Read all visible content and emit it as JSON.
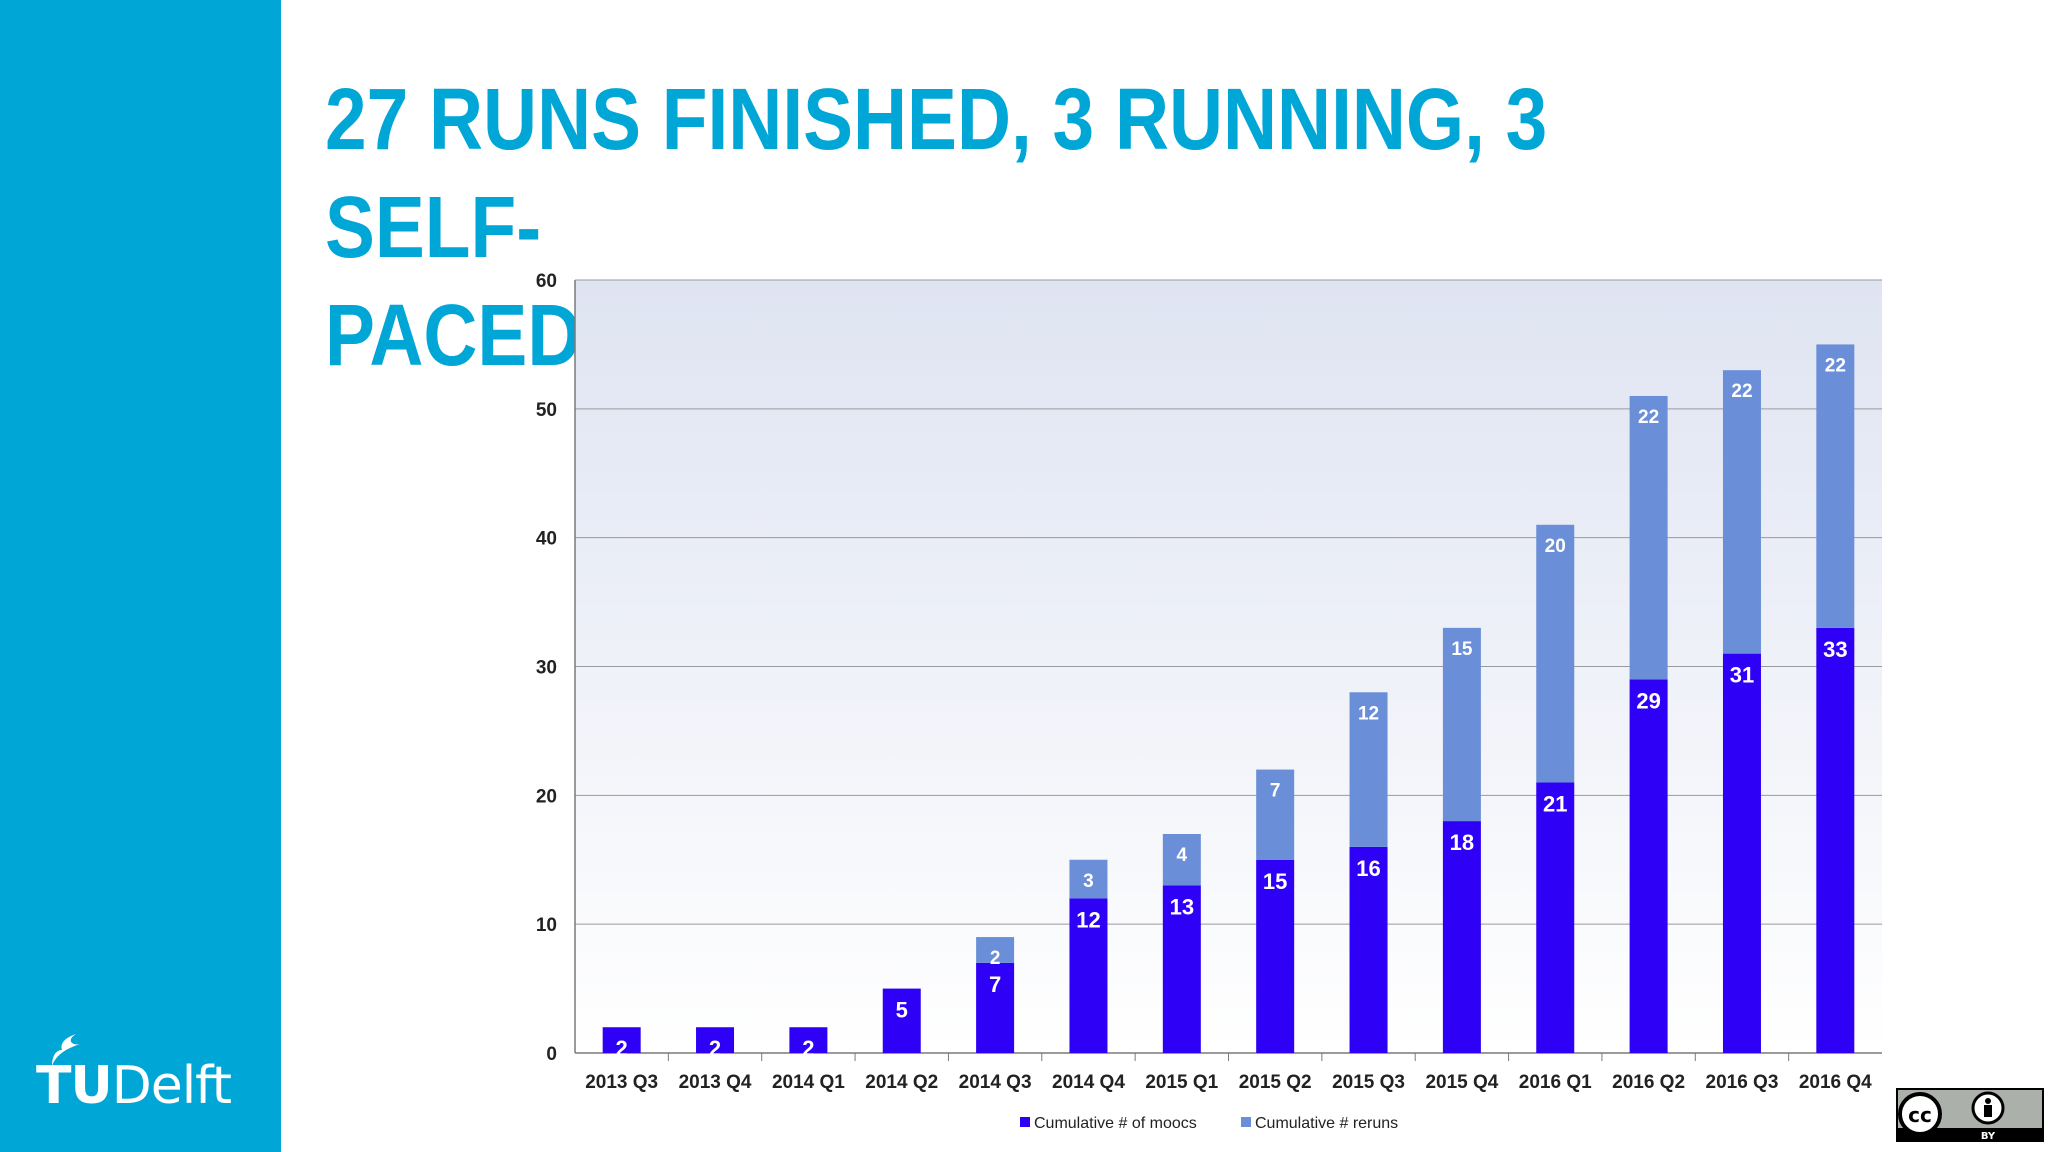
{
  "slide": {
    "title_line1": "27 RUNS FINISHED, 3 RUNNING, 3 SELF-",
    "title_line2": "PACED, 15 IN DEVELOPMENT"
  },
  "logo": {
    "text_bold": "TU",
    "text_regular": "Delft"
  },
  "license": {
    "cc": "cc",
    "by": "BY"
  },
  "colors": {
    "sidebar": "#00a6d6",
    "title": "#00a6d6",
    "moocs": "#2e00f5",
    "reruns": "#6a8fd8"
  },
  "chart_data": {
    "type": "bar",
    "stacked": true,
    "categories": [
      "2013 Q3",
      "2013 Q4",
      "2014 Q1",
      "2014 Q2",
      "2014 Q3",
      "2014 Q4",
      "2015 Q1",
      "2015 Q2",
      "2015 Q3",
      "2015 Q4",
      "2016 Q1",
      "2016 Q2",
      "2016 Q3",
      "2016 Q4"
    ],
    "series": [
      {
        "name": "Cumulative # of moocs",
        "values": [
          2,
          2,
          2,
          5,
          7,
          12,
          13,
          15,
          16,
          18,
          21,
          29,
          31,
          33
        ],
        "labels": [
          "2",
          "2",
          "2",
          "5",
          "7",
          "12",
          "13",
          "15",
          "16",
          "18",
          "21",
          "29",
          "31",
          "33"
        ]
      },
      {
        "name": "Cumulative # reruns",
        "values": [
          0,
          0,
          0,
          0,
          2,
          3,
          4,
          7,
          12,
          15,
          20,
          22,
          22,
          22
        ],
        "labels": [
          "",
          "",
          "",
          "",
          "2",
          "3",
          "4",
          "7",
          "12",
          "15",
          "20",
          "22",
          "22",
          "22"
        ]
      }
    ],
    "yticks": [
      "0",
      "10",
      "20",
      "30",
      "40",
      "50",
      "60"
    ],
    "ylim": [
      0,
      60
    ],
    "grid": true,
    "legend_position": "bottom"
  }
}
